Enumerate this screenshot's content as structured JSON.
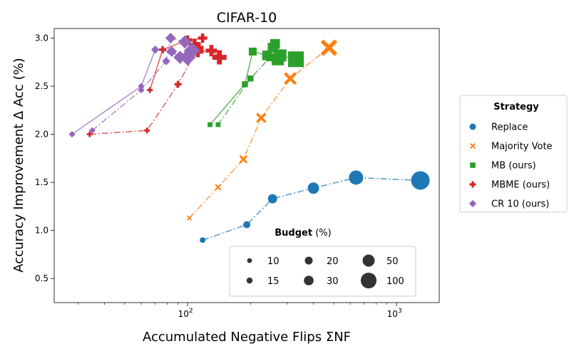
{
  "chart_data": {
    "type": "scatter",
    "title": "CIFAR-10",
    "xlabel": "Accumulated Negative Flips ΣNF",
    "ylabel": "Accuracy Improvement Δ Acc (%)",
    "xscale": "log",
    "xlim": [
      23,
      1600
    ],
    "ylim": [
      0.25,
      3.1
    ],
    "x_ticks": [
      100,
      1000
    ],
    "x_tick_labels": [
      "10",
      "10"
    ],
    "x_tick_superscripts": [
      "2",
      "3"
    ],
    "y_ticks": [
      0.5,
      1.0,
      1.5,
      2.0,
      2.5,
      3.0
    ],
    "y_tick_labels": [
      "0.5",
      "1.0",
      "1.5",
      "2.0",
      "2.5",
      "3.0"
    ],
    "size_scale": {
      "10": 4,
      "15": 5,
      "20": 6.5,
      "30": 8,
      "50": 10,
      "100": 13
    },
    "series": [
      {
        "name": "Replace",
        "marker": "circle",
        "color": "#1f77b4",
        "lines": [
          {
            "style": "dashdot",
            "points": [
              {
                "x": 118,
                "y": 0.9,
                "budget": 10
              },
              {
                "x": 192,
                "y": 1.06,
                "budget": 15
              },
              {
                "x": 255,
                "y": 1.33,
                "budget": 20
              },
              {
                "x": 400,
                "y": 1.44,
                "budget": 30
              },
              {
                "x": 640,
                "y": 1.55,
                "budget": 50
              },
              {
                "x": 1300,
                "y": 1.52,
                "budget": 100
              }
            ]
          }
        ]
      },
      {
        "name": "Majority Vote",
        "marker": "x",
        "color": "#ff7f0e",
        "lines": [
          {
            "style": "dashdot",
            "points": [
              {
                "x": 102,
                "y": 1.13,
                "budget": 10
              },
              {
                "x": 140,
                "y": 1.45,
                "budget": 15
              },
              {
                "x": 185,
                "y": 1.74,
                "budget": 20
              },
              {
                "x": 225,
                "y": 2.17,
                "budget": 30
              },
              {
                "x": 310,
                "y": 2.58,
                "budget": 50
              },
              {
                "x": 475,
                "y": 2.9,
                "budget": 100
              }
            ]
          }
        ]
      },
      {
        "name": "MB (ours)",
        "marker": "square",
        "color": "#2ca02c",
        "lines": [
          {
            "style": "solid",
            "points": [
              {
                "x": 128,
                "y": 2.1,
                "budget": 10
              },
              {
                "x": 188,
                "y": 2.52,
                "budget": 15
              },
              {
                "x": 205,
                "y": 2.86,
                "budget": 20
              },
              {
                "x": 240,
                "y": 2.82,
                "budget": 30
              },
              {
                "x": 262,
                "y": 2.94,
                "budget": 30
              },
              {
                "x": 278,
                "y": 2.82,
                "budget": 50
              },
              {
                "x": 330,
                "y": 2.78,
                "budget": 100
              }
            ]
          },
          {
            "style": "dashdot",
            "points": [
              {
                "x": 140,
                "y": 2.1,
                "budget": 10
              },
              {
                "x": 200,
                "y": 2.58,
                "budget": 15
              },
              {
                "x": 248,
                "y": 2.8,
                "budget": 20
              },
              {
                "x": 255,
                "y": 2.9,
                "budget": 30
              },
              {
                "x": 270,
                "y": 2.78,
                "budget": 50
              }
            ]
          }
        ]
      },
      {
        "name": "MBME (ours)",
        "marker": "plus",
        "color": "#d62728",
        "lines": [
          {
            "style": "solid",
            "points": [
              {
                "x": 66,
                "y": 2.46,
                "budget": 10
              },
              {
                "x": 76,
                "y": 2.88,
                "budget": 15
              },
              {
                "x": 100,
                "y": 2.98,
                "budget": 20
              },
              {
                "x": 118,
                "y": 3.0,
                "budget": 20
              },
              {
                "x": 112,
                "y": 2.86,
                "budget": 30
              },
              {
                "x": 130,
                "y": 2.87,
                "budget": 30
              },
              {
                "x": 142,
                "y": 2.8,
                "budget": 50
              }
            ]
          },
          {
            "style": "dashdot",
            "points": [
              {
                "x": 34,
                "y": 2.0,
                "budget": 10
              },
              {
                "x": 64,
                "y": 2.04,
                "budget": 10
              },
              {
                "x": 90,
                "y": 2.52,
                "budget": 15
              },
              {
                "x": 112,
                "y": 2.9,
                "budget": 30
              },
              {
                "x": 108,
                "y": 2.93,
                "budget": 30
              }
            ]
          }
        ]
      },
      {
        "name": "CR 10 (ours)",
        "marker": "diamond",
        "color": "#9467bd",
        "lines": [
          {
            "style": "solid",
            "points": [
              {
                "x": 28,
                "y": 2.0,
                "budget": 10
              },
              {
                "x": 60,
                "y": 2.5,
                "budget": 10
              },
              {
                "x": 70,
                "y": 2.88,
                "budget": 15
              },
              {
                "x": 84,
                "y": 2.86,
                "budget": 20
              },
              {
                "x": 92,
                "y": 2.8,
                "budget": 30
              },
              {
                "x": 100,
                "y": 2.8,
                "budget": 50
              }
            ]
          },
          {
            "style": "dashdot",
            "points": [
              {
                "x": 35,
                "y": 2.04,
                "budget": 10
              },
              {
                "x": 60,
                "y": 2.46,
                "budget": 10
              },
              {
                "x": 79,
                "y": 2.76,
                "budget": 15
              },
              {
                "x": 83,
                "y": 3.0,
                "budget": 20
              },
              {
                "x": 97,
                "y": 2.96,
                "budget": 30
              },
              {
                "x": 105,
                "y": 2.87,
                "budget": 50
              }
            ]
          }
        ]
      }
    ]
  },
  "legend": {
    "strategy_title": "Strategy",
    "strategy_entries": [
      {
        "label": "Replace",
        "marker": "circle",
        "color": "#1f77b4"
      },
      {
        "label": "Majority Vote",
        "marker": "x",
        "color": "#ff7f0e"
      },
      {
        "label": "MB (ours)",
        "marker": "square",
        "color": "#2ca02c"
      },
      {
        "label": "MBME (ours)",
        "marker": "plus",
        "color": "#d62728"
      },
      {
        "label": "CR 10 (ours)",
        "marker": "diamond",
        "color": "#9467bd"
      }
    ],
    "budget_title_bold": "Budget",
    "budget_title_rest": " (%)",
    "budget_entries": [
      {
        "label": "10",
        "budget": 10
      },
      {
        "label": "20",
        "budget": 20
      },
      {
        "label": "50",
        "budget": 50
      },
      {
        "label": "15",
        "budget": 15
      },
      {
        "label": "30",
        "budget": 30
      },
      {
        "label": "100",
        "budget": 100
      }
    ]
  }
}
